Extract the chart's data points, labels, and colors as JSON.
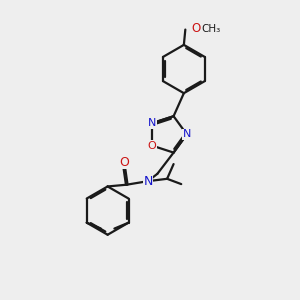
{
  "bg_color": "#eeeeee",
  "bond_color": "#1a1a1a",
  "nitrogen_color": "#1414cc",
  "oxygen_color": "#cc1414",
  "line_width": 1.6,
  "figsize": [
    3.0,
    3.0
  ],
  "dpi": 100,
  "xlim": [
    0,
    10
  ],
  "ylim": [
    0,
    10
  ]
}
